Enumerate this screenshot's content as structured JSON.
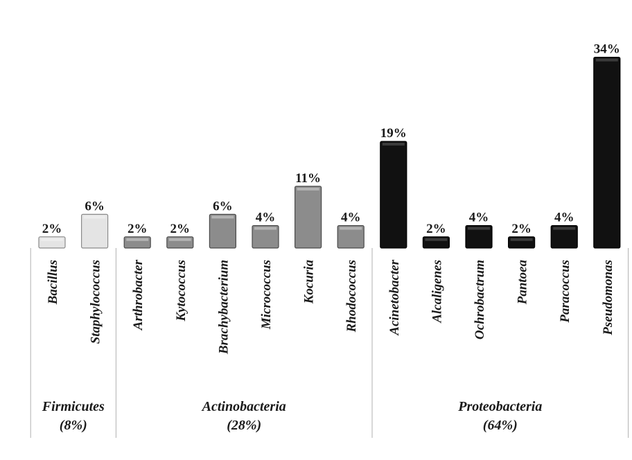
{
  "chart_data": {
    "type": "bar",
    "title": "",
    "xlabel": "",
    "ylabel": "",
    "ylim": [
      0,
      34
    ],
    "value_suffix": "%",
    "grid": false,
    "categories": [
      "Bacillus",
      "Staphylococcus",
      "Arthrobacter",
      "Kytococcus",
      "Brachybacterium",
      "Micrococcus",
      "Kocuria",
      "Rhodococcus",
      "Acinetobacter",
      "Alcaligenes",
      "Ochrobactrum",
      "Pantoea",
      "Paracoccus",
      "Pseudomonas"
    ],
    "values": [
      2,
      6,
      2,
      2,
      6,
      4,
      11,
      4,
      19,
      2,
      4,
      2,
      4,
      34
    ],
    "value_labels": [
      "2%",
      "6%",
      "2%",
      "2%",
      "6%",
      "4%",
      "11%",
      "4%",
      "19%",
      "2%",
      "4%",
      "2%",
      "4%",
      "34%"
    ],
    "groups": [
      {
        "name": "Firmicutes",
        "share": "(8%)",
        "color": "#e4e4e4",
        "edge": "#8a8a8a",
        "members": [
          "Bacillus",
          "Staphylococcus"
        ]
      },
      {
        "name": "Actinobacteria",
        "share": "(28%)",
        "color": "#8c8c8c",
        "edge": "#4a4a4a",
        "members": [
          "Arthrobacter",
          "Kytococcus",
          "Brachybacterium",
          "Micrococcus",
          "Kocuria",
          "Rhodococcus"
        ]
      },
      {
        "name": "Proteobacteria",
        "share": "(64%)",
        "color": "#111111",
        "edge": "#000000",
        "members": [
          "Acinetobacter",
          "Alcaligenes",
          "Ochrobactrum",
          "Pantoea",
          "Paracoccus",
          "Pseudomonas"
        ]
      }
    ]
  }
}
